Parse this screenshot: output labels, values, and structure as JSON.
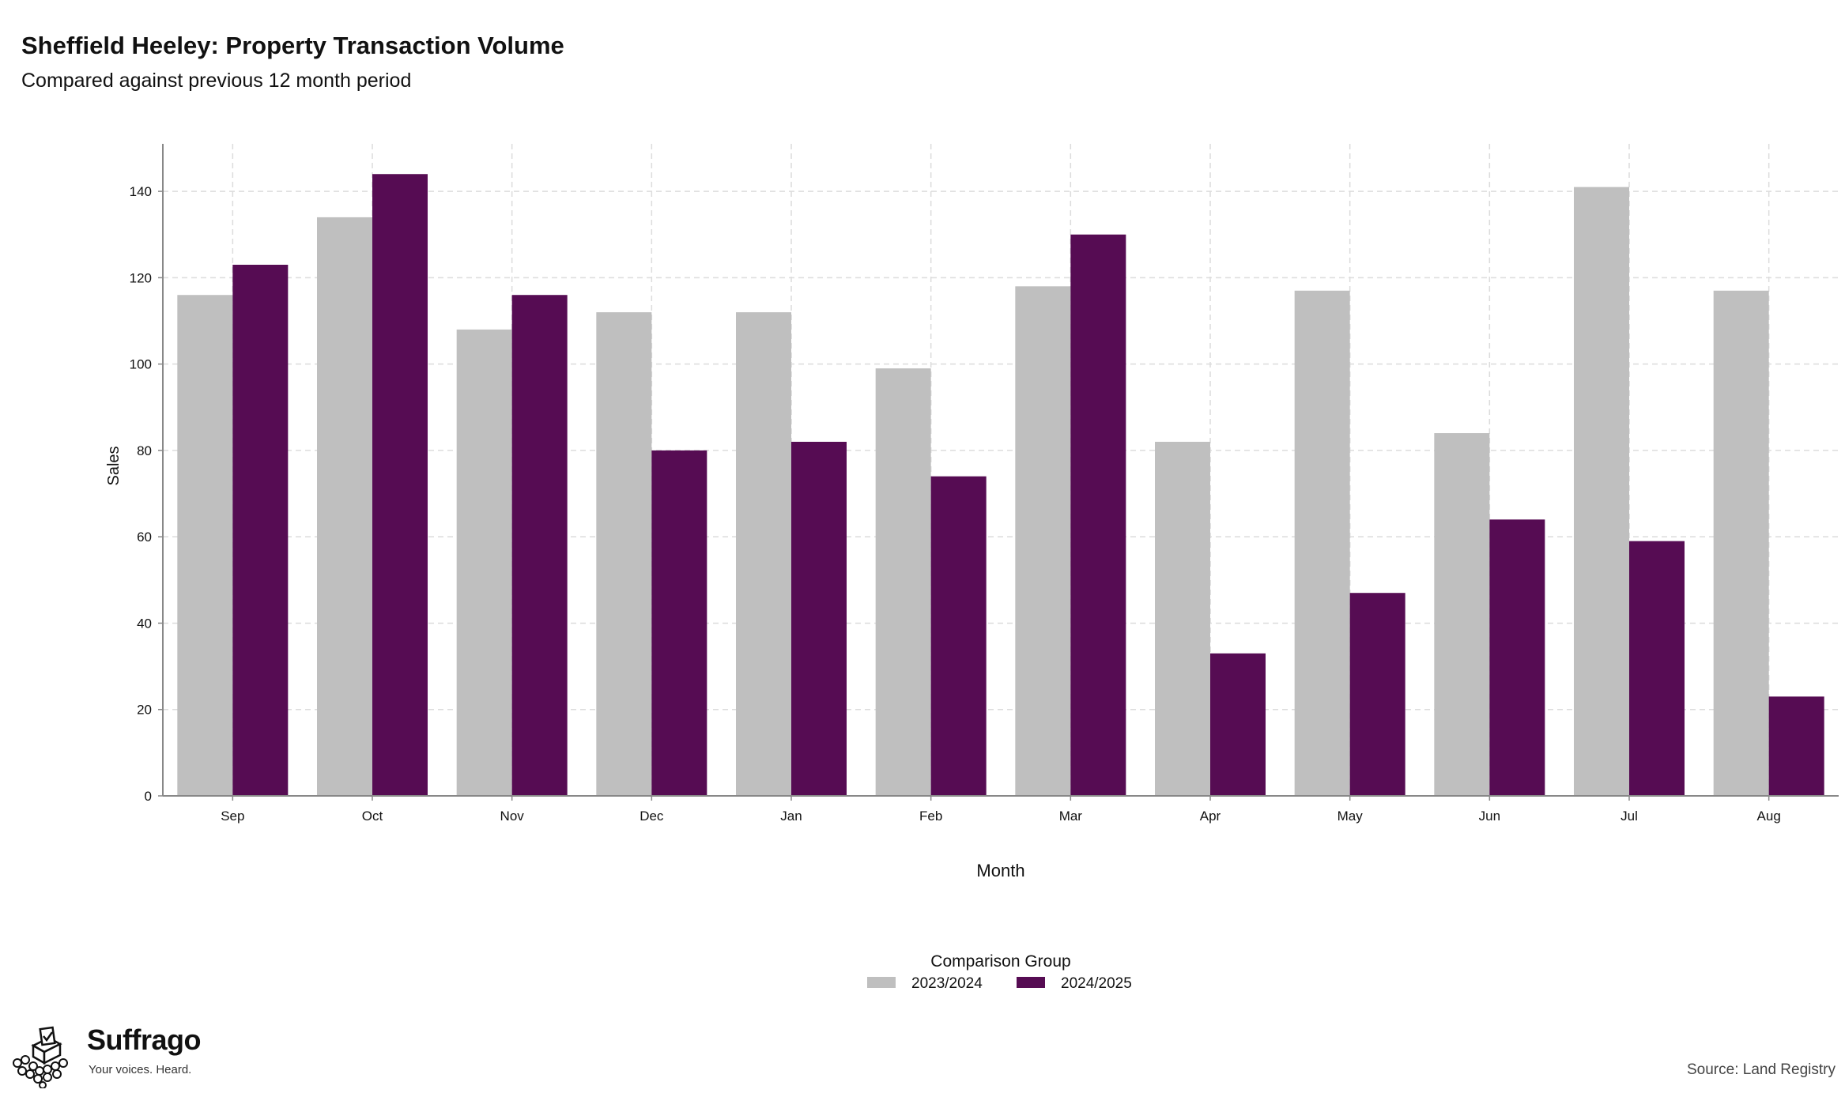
{
  "header": {
    "title": "Sheffield Heeley: Property Transaction Volume",
    "subtitle": "Compared against previous 12 month period"
  },
  "footer": {
    "brand_name": "Suffrago",
    "brand_tagline": "Your voices. Heard.",
    "source": "Source: Land Registry"
  },
  "colors": {
    "series_2023_2024": "#bfbfbf",
    "series_2024_2025": "#560c53",
    "grid": "#dcdcdc",
    "axis": "#888888"
  },
  "chart_data": {
    "type": "bar",
    "title": "Sheffield Heeley: Property Transaction Volume",
    "subtitle": "Compared against previous 12 month period",
    "xlabel": "Month",
    "ylabel": "Sales",
    "categories": [
      "Sep",
      "Oct",
      "Nov",
      "Dec",
      "Jan",
      "Feb",
      "Mar",
      "Apr",
      "May",
      "Jun",
      "Jul",
      "Aug"
    ],
    "series": [
      {
        "name": "2023/2024",
        "color": "#bfbfbf",
        "values": [
          116,
          134,
          108,
          112,
          112,
          99,
          118,
          82,
          117,
          84,
          141,
          117
        ]
      },
      {
        "name": "2024/2025",
        "color": "#560c53",
        "values": [
          123,
          144,
          116,
          80,
          82,
          74,
          130,
          33,
          47,
          64,
          59,
          23
        ]
      }
    ],
    "ylim": [
      0,
      151
    ],
    "yticks": [
      0,
      20,
      40,
      60,
      80,
      100,
      120,
      140
    ],
    "grid": true,
    "legend_title": "Comparison Group",
    "legend_position": "bottom"
  }
}
